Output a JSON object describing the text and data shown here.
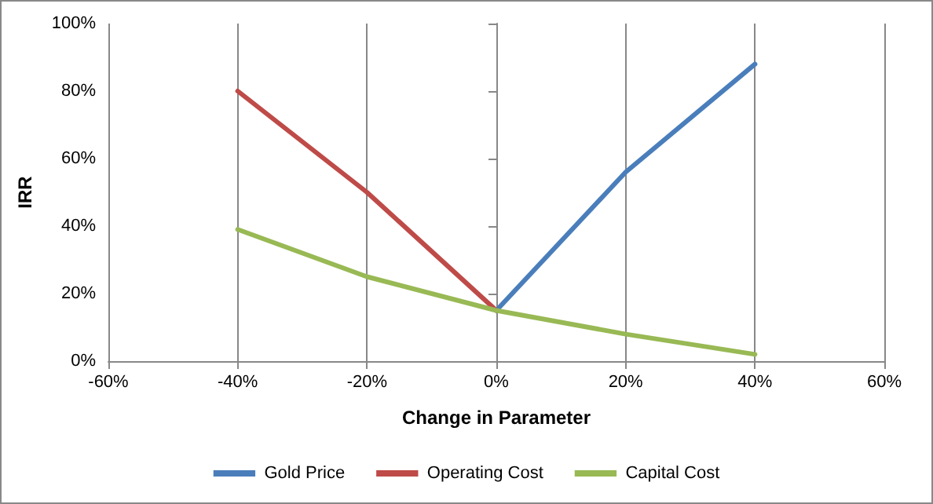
{
  "chart_data": {
    "type": "line",
    "xlabel": "Change in Parameter",
    "ylabel": "IRR",
    "series": [
      {
        "name": "Gold Price",
        "color": "#4a7ebb",
        "x": [
          0,
          20,
          40
        ],
        "values": [
          15,
          56,
          88
        ]
      },
      {
        "name": "Operating Cost",
        "color": "#be4b48",
        "x": [
          -40,
          -20,
          0
        ],
        "values": [
          80,
          50,
          15
        ]
      },
      {
        "name": "Capital Cost",
        "color": "#98b954",
        "x": [
          -40,
          -20,
          0,
          20,
          40
        ],
        "values": [
          39,
          25,
          15,
          8,
          2
        ]
      }
    ],
    "xlim": [
      -60,
      60
    ],
    "xticks": [
      {
        "value": -60,
        "label": "-60%"
      },
      {
        "value": -40,
        "label": "-40%"
      },
      {
        "value": -20,
        "label": "-20%"
      },
      {
        "value": 0,
        "label": "0%"
      },
      {
        "value": 20,
        "label": "20%"
      },
      {
        "value": 40,
        "label": "40%"
      },
      {
        "value": 60,
        "label": "60%"
      }
    ],
    "ylim": [
      0,
      100
    ],
    "yticks": [
      {
        "value": 0,
        "label": "0%"
      },
      {
        "value": 20,
        "label": "20%"
      },
      {
        "value": 40,
        "label": "40%"
      },
      {
        "value": 60,
        "label": "60%"
      },
      {
        "value": 80,
        "label": "80%"
      },
      {
        "value": 100,
        "label": "100%"
      }
    ],
    "grid": "x",
    "legend": "bottom",
    "marker": "none",
    "line_style": "solid"
  }
}
